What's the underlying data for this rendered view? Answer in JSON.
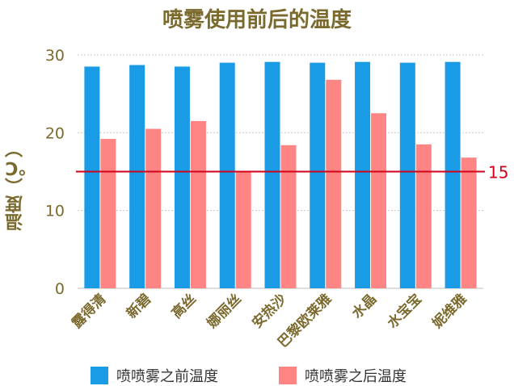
{
  "chart_data": {
    "type": "bar",
    "title": "喷雾使用前后的温度",
    "ylabel": "温度（℃）",
    "xlabel": "",
    "ylim": [
      0,
      30
    ],
    "yticks": [
      0,
      10,
      20,
      30
    ],
    "grid": true,
    "legend_position": "bottom",
    "categories": [
      "露得清",
      "新碧",
      "高丝",
      "娜丽丝",
      "安热沙",
      "巴黎欧莱雅",
      "水晶",
      "水宝宝",
      "妮维雅"
    ],
    "series": [
      {
        "name": "喷喷雾之前温度",
        "color": "#1a9be6",
        "values": [
          28.5,
          28.7,
          28.5,
          29.0,
          29.1,
          29.0,
          29.1,
          29.0,
          29.1
        ]
      },
      {
        "name": "喷喷雾之后温度",
        "color": "#ff8585",
        "values": [
          19.2,
          20.5,
          21.5,
          15.0,
          18.4,
          26.8,
          22.5,
          18.5,
          16.8
        ]
      }
    ],
    "reference_line": {
      "value": 15,
      "label": "15",
      "color": "#d0021b"
    }
  }
}
